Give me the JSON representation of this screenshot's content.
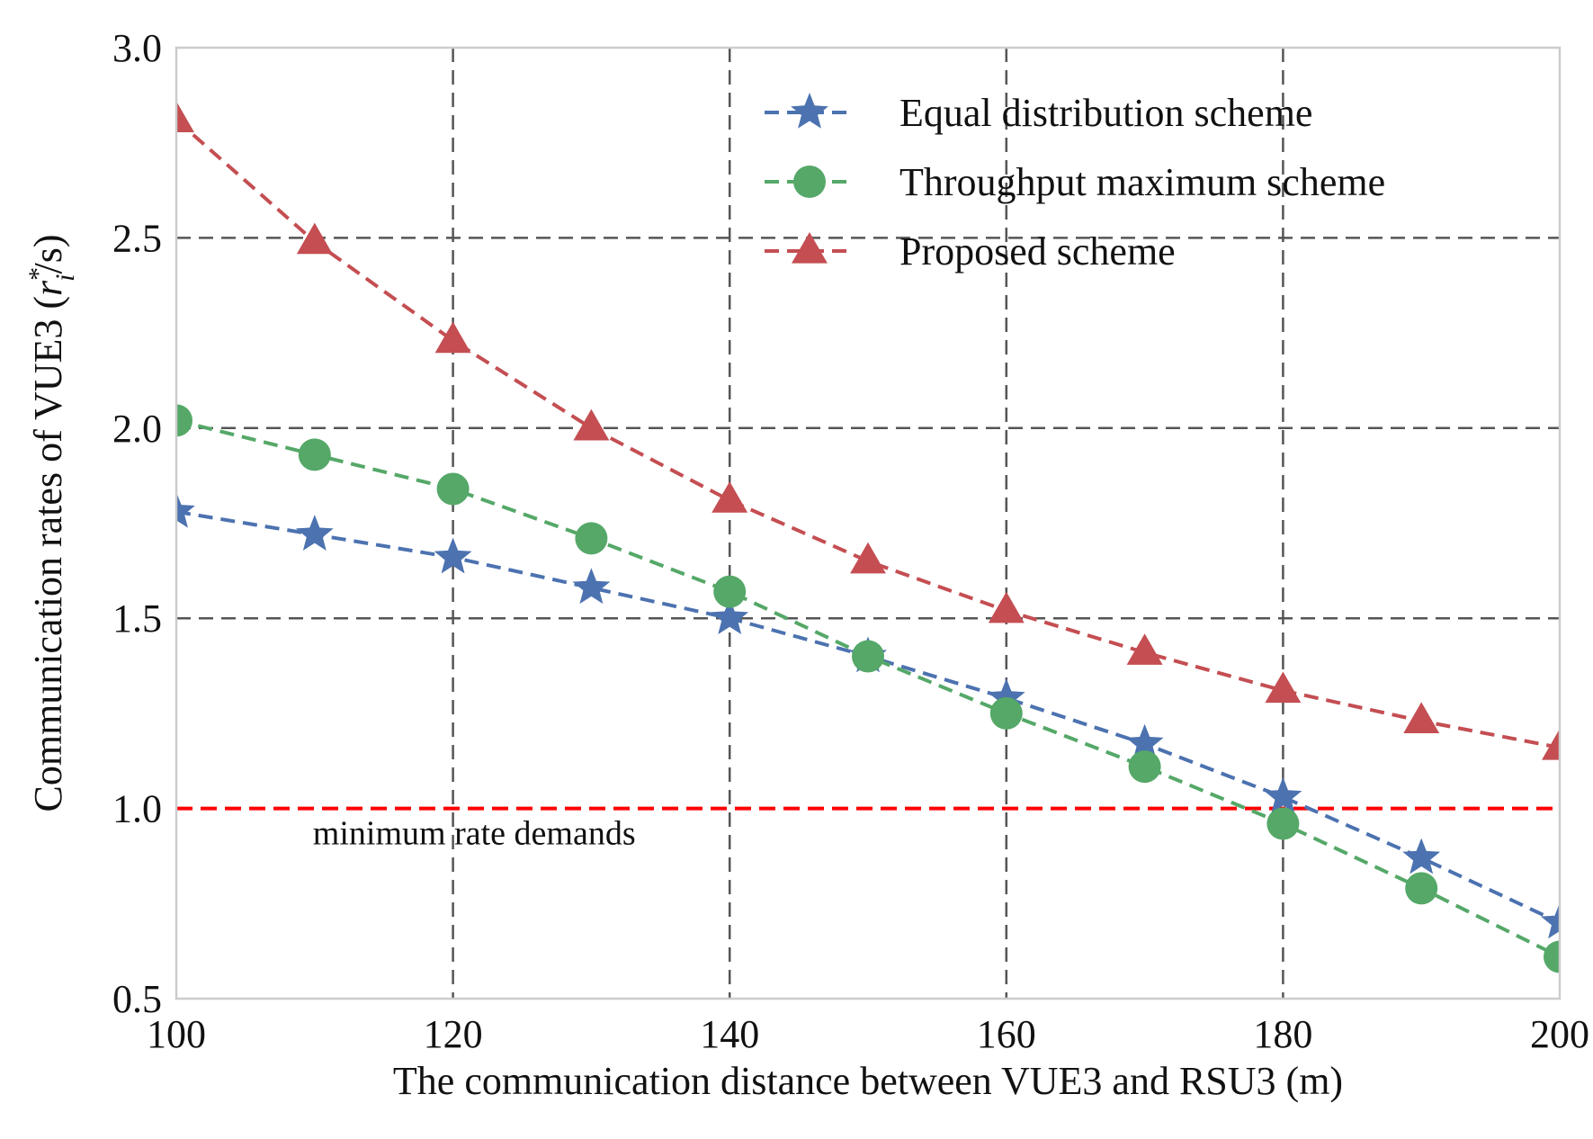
{
  "chart_data": {
    "type": "line",
    "title": "",
    "xlabel": "The communication distance between VUE3 and RSU3 (m)",
    "ylabel": {
      "prefix": "Communication rates of VUE3 (",
      "var": "r",
      "sub": "i",
      "sup": "*",
      "suffix": "/s)"
    },
    "xlim": [
      100,
      200
    ],
    "ylim": [
      0.5,
      3.0
    ],
    "xticks": [
      100,
      120,
      140,
      160,
      180,
      200
    ],
    "xtick_labels": [
      "100",
      "120",
      "140",
      "160",
      "180",
      "200"
    ],
    "yticks": [
      0.5,
      1.0,
      1.5,
      2.0,
      2.5,
      3.0
    ],
    "ytick_labels": [
      "0.5",
      "1.0",
      "1.5",
      "2.0",
      "2.5",
      "3.0"
    ],
    "grid": true,
    "legend_position": "top-right",
    "x": [
      100,
      110,
      120,
      130,
      140,
      150,
      160,
      170,
      180,
      190,
      200
    ],
    "series": [
      {
        "name": "Equal distribution scheme",
        "marker": "star",
        "color": "#4C72B0",
        "values": [
          1.78,
          1.72,
          1.66,
          1.58,
          1.5,
          1.4,
          1.29,
          1.17,
          1.03,
          0.87,
          0.7
        ]
      },
      {
        "name": "Throughput maximum scheme",
        "marker": "circle",
        "color": "#55A868",
        "values": [
          2.02,
          1.93,
          1.84,
          1.71,
          1.57,
          1.4,
          1.25,
          1.11,
          0.96,
          0.79,
          0.61
        ]
      },
      {
        "name": "Proposed scheme",
        "marker": "triangle",
        "color": "#C44E52",
        "values": [
          2.81,
          2.49,
          2.23,
          2.0,
          1.81,
          1.65,
          1.52,
          1.41,
          1.31,
          1.23,
          1.16
        ]
      }
    ],
    "reference_line": {
      "y": 1.0,
      "color": "#FF0000",
      "label": "minimum rate demands"
    }
  }
}
